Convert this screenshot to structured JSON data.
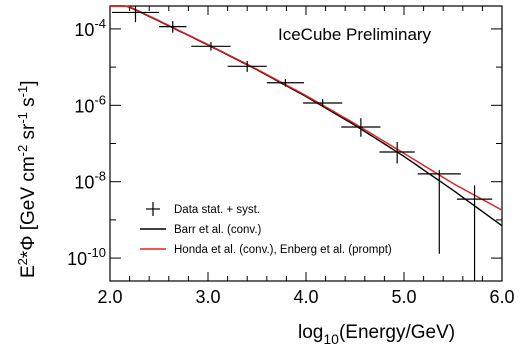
{
  "chart_data": {
    "type": "scatter",
    "annotation": "IceCube Preliminary",
    "xlabel_base": "log",
    "xlabel_sub": "10",
    "xlabel_rest": "(Energy/GeV)",
    "ylabel_parts": {
      "p1": "E",
      "s1": "2",
      "p2": "*Φ [GeV cm",
      "s2": "-2",
      "p3": " sr",
      "s3": "-1",
      "p4": " s",
      "s4": "-1",
      "p5": "]"
    },
    "xlim": [
      2.0,
      6.0
    ],
    "ylim_log10": [
      -10.6,
      -3.4
    ],
    "x_ticks": [
      {
        "value": 2.0,
        "label": "2.0"
      },
      {
        "value": 3.0,
        "label": "3.0"
      },
      {
        "value": 4.0,
        "label": "4.0"
      },
      {
        "value": 5.0,
        "label": "5.0"
      },
      {
        "value": 6.0,
        "label": "6.0"
      }
    ],
    "y_ticks": [
      {
        "exp": -4,
        "base": "10",
        "sup": "-4"
      },
      {
        "exp": -6,
        "base": "10",
        "sup": "-6"
      },
      {
        "exp": -8,
        "base": "10",
        "sup": "-8"
      },
      {
        "exp": -10,
        "base": "10",
        "sup": "-10"
      }
    ],
    "legend": {
      "placement": "bottom-left",
      "entries": [
        {
          "label": "Data stat. + syst.",
          "style": "errorbar",
          "color": "#000000"
        },
        {
          "label": "Barr et al. (conv.)",
          "style": "line",
          "color": "#000000"
        },
        {
          "label": "Honda et al. (conv.), Enberg et al. (prompt)",
          "style": "line",
          "color": "#e02020"
        }
      ]
    },
    "series": [
      {
        "type": "errorbar",
        "points": [
          {
            "x": 2.26,
            "xerr": 0.24,
            "y": 0.00027,
            "ylo": 0.00015,
            "yhi": 0.0004
          },
          {
            "x": 2.64,
            "xerr": 0.14,
            "y": 0.000115,
            "ylo": 8e-05,
            "yhi": 0.00016
          },
          {
            "x": 3.03,
            "xerr": 0.2,
            "y": 3.5e-05,
            "ylo": 2.7e-05,
            "yhi": 4.5e-05
          },
          {
            "x": 3.4,
            "xerr": 0.2,
            "y": 1.05e-05,
            "ylo": 7.5e-06,
            "yhi": 1.45e-05
          },
          {
            "x": 3.79,
            "xerr": 0.19,
            "y": 3.9e-06,
            "ylo": 3.1e-06,
            "yhi": 4.9e-06
          },
          {
            "x": 4.17,
            "xerr": 0.2,
            "y": 1.15e-06,
            "ylo": 9e-07,
            "yhi": 1.45e-06
          },
          {
            "x": 4.56,
            "xerr": 0.2,
            "y": 2.7e-07,
            "ylo": 1.5e-07,
            "yhi": 4.6e-07
          },
          {
            "x": 4.93,
            "xerr": 0.18,
            "y": 6e-08,
            "ylo": 3e-08,
            "yhi": 1.1e-07
          },
          {
            "x": 5.36,
            "xerr": 0.22,
            "y": 1.6e-08,
            "ylo": 1.3e-10,
            "yhi": 2e-08
          },
          {
            "x": 5.72,
            "xerr": 0.18,
            "y": 3.5e-09,
            "ylo": 1.2e-11,
            "yhi": 8e-09
          }
        ]
      },
      {
        "type": "line",
        "color": "#000000",
        "points": [
          [
            2.0,
            0.00065
          ],
          [
            2.5,
            0.00016
          ],
          [
            3.0,
            3.8e-05
          ],
          [
            3.5,
            8.5e-06
          ],
          [
            4.0,
            1.7e-06
          ],
          [
            4.5,
            3e-07
          ],
          [
            5.0,
            4.6e-08
          ],
          [
            5.5,
            6e-09
          ],
          [
            6.0,
            7e-10
          ]
        ]
      },
      {
        "type": "line",
        "color": "#e02020",
        "points": [
          [
            2.0,
            0.00067
          ],
          [
            2.5,
            0.000165
          ],
          [
            3.0,
            3.9e-05
          ],
          [
            3.5,
            8.8e-06
          ],
          [
            4.0,
            1.8e-06
          ],
          [
            4.5,
            3.3e-07
          ],
          [
            5.0,
            5.5e-08
          ],
          [
            5.5,
            9e-09
          ],
          [
            6.0,
            1.8e-09
          ]
        ]
      }
    ]
  }
}
